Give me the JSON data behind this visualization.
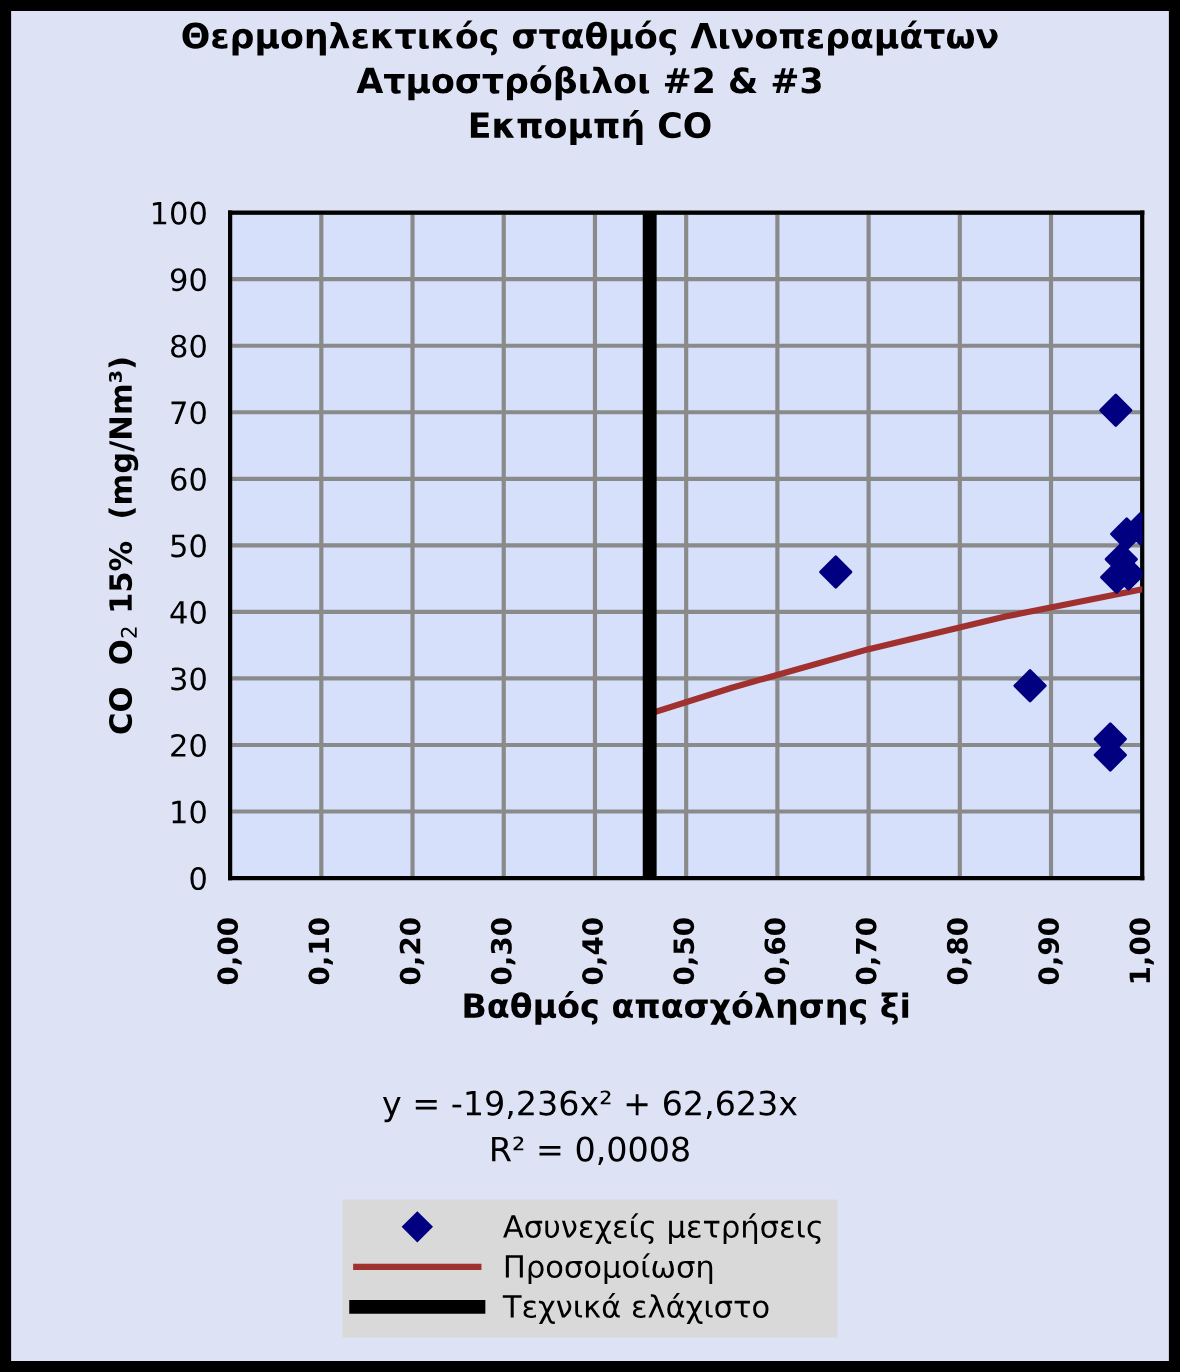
{
  "chart_data": {
    "type": "scatter",
    "title": "Θερμοηλεκτικός σταθμός Λινοπεραμάτων\nΑτμοστρόβιλοι #2 & #3\nΕκπομπή CO",
    "xlabel": "Βαθμός απασχόλησης ξi",
    "ylabel": "CO  O$_{2}$ 15%  (mg/Nm³)",
    "series": [
      {
        "name": "Ασυνεχείς μετρήσεις",
        "type": "scatter",
        "color": "#000080",
        "marker": "diamond",
        "x": [
          0.971,
          0.664,
          0.877,
          0.965,
          0.965,
          0.998,
          0.983,
          0.977,
          0.972,
          0.985
        ],
        "values": [
          70.3,
          46.0,
          28.9,
          20.9,
          18.5,
          52.5,
          51.7,
          47.9,
          45.2,
          45.7
        ]
      },
      {
        "name": "Προσομοίωση",
        "type": "line",
        "color": "#a0312f",
        "marker": "none",
        "x": [
          0.46,
          0.55,
          0.7,
          0.85,
          1.0
        ],
        "values": [
          24.7,
          28.6,
          34.4,
          39.3,
          43.4
        ]
      },
      {
        "name": "Τεχνικά ελάχιστο",
        "type": "line",
        "color": "#000000",
        "marker": "none",
        "x": [
          0.46,
          0.46
        ],
        "values": [
          0,
          100
        ]
      }
    ],
    "annotations": [
      "y = -19,236x² + 62,623x",
      "R² = 0,0008"
    ],
    "xlim": [
      0,
      1
    ],
    "xticks": [
      {
        "value": 0,
        "label": "0,00"
      },
      {
        "value": 0.1,
        "label": "0,10"
      },
      {
        "value": 0.2,
        "label": "0,20"
      },
      {
        "value": 0.3,
        "label": "0,30"
      },
      {
        "value": 0.4,
        "label": "0,40"
      },
      {
        "value": 0.5,
        "label": "0,50"
      },
      {
        "value": 0.6,
        "label": "0,60"
      },
      {
        "value": 0.7,
        "label": "0,70"
      },
      {
        "value": 0.8,
        "label": "0,80"
      },
      {
        "value": 0.9,
        "label": "0,90"
      },
      {
        "value": 1,
        "label": "1,00"
      }
    ],
    "ylim": [
      0,
      100
    ],
    "yticks": [
      0,
      10,
      20,
      30,
      40,
      50,
      60,
      70,
      80,
      90,
      100
    ],
    "grid": true,
    "legend": "bottom"
  }
}
